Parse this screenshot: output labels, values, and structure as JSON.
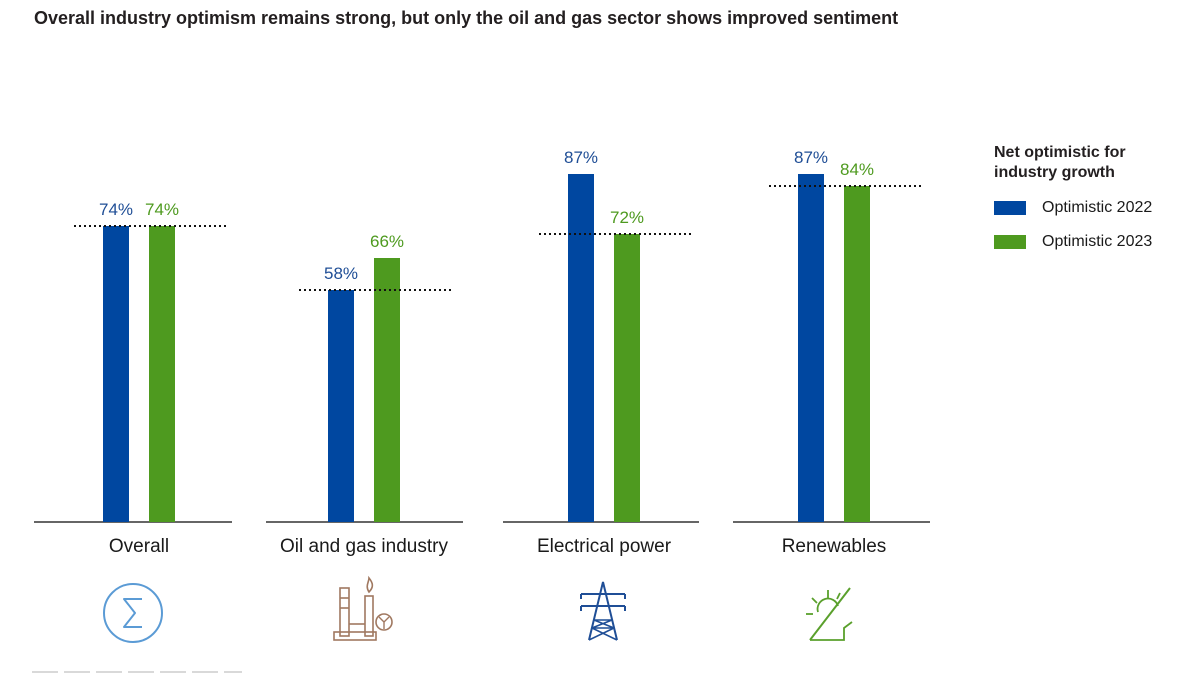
{
  "title": "Overall industry optimism remains strong, but only the oil and gas sector shows improved sentiment",
  "legend": {
    "title": "Net optimistic for industry growth",
    "items": [
      {
        "label": "Optimistic 2022",
        "color": "#0047a0"
      },
      {
        "label": "Optimistic 2023",
        "color": "#4e9a1f"
      }
    ]
  },
  "colors": {
    "series_2022": "#0047a0",
    "series_2023": "#4e9a1f",
    "label_2022": "#1f4e96",
    "label_2023": "#4e9a1f",
    "icon_overall": "#5b9bd5",
    "icon_oil_gas": "#a07860",
    "icon_electrical": "#1f4e96",
    "icon_renewables": "#5aa02c"
  },
  "chart_data": {
    "type": "bar",
    "categories": [
      "Overall",
      "Oil and gas industry",
      "Electrical power",
      "Renewables"
    ],
    "series": [
      {
        "name": "Optimistic 2022",
        "values": [
          74,
          58,
          87,
          87
        ],
        "labels": [
          "74%",
          "58%",
          "87%",
          "87%"
        ]
      },
      {
        "name": "Optimistic 2023",
        "values": [
          74,
          66,
          72,
          84
        ],
        "labels": [
          "74%",
          "66%",
          "72%",
          "84%"
        ]
      }
    ],
    "reference_lines": [
      74,
      58,
      72,
      84
    ],
    "category_icons": [
      "sigma-icon",
      "oil-refinery-icon",
      "power-pylon-icon",
      "solar-sun-icon"
    ],
    "ylim": [
      0,
      100
    ],
    "grid": false,
    "legend_position": "right",
    "xlabel": "",
    "ylabel": ""
  }
}
